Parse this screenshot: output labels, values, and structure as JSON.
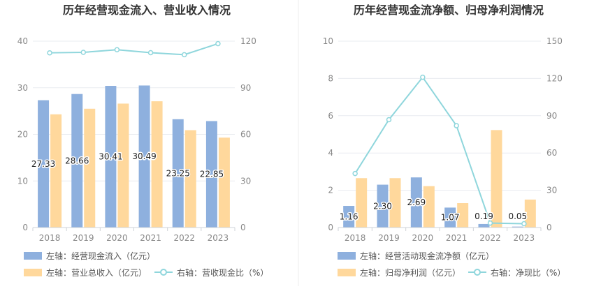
{
  "colors": {
    "blue": "#8eb0de",
    "orange": "#ffd89c",
    "line": "#8fd6dc",
    "grid": "#e9ecf0",
    "axis": "#cfd3d8",
    "divider": "#eeeeee"
  },
  "chart_data": [
    {
      "type": "bar",
      "title": "历年经营现金流入、营业收入情况",
      "categories": [
        "2018",
        "2019",
        "2020",
        "2021",
        "2022",
        "2023"
      ],
      "y_left_ticks": [
        "0",
        "10",
        "20",
        "30",
        "40"
      ],
      "y_right_ticks": [
        "0",
        "30",
        "60",
        "90",
        "120"
      ],
      "ylim_left": [
        0,
        40
      ],
      "ylim_right": [
        0,
        120
      ],
      "series": [
        {
          "name": "左轴：经营现金流入（亿元）",
          "axis": "left",
          "type": "bar",
          "values": [
            27.33,
            28.66,
            30.41,
            30.49,
            23.25,
            22.85
          ],
          "labels": [
            "27.33",
            "28.66",
            "30.41",
            "30.49",
            "23.25",
            "22.85"
          ]
        },
        {
          "name": "左轴：营业总收入（亿元）",
          "axis": "left",
          "type": "bar",
          "values": [
            24.3,
            25.5,
            26.6,
            27.1,
            20.9,
            19.3
          ]
        },
        {
          "name": "右轴：营收现金比（%）",
          "axis": "right",
          "type": "line",
          "values": [
            112.5,
            112.8,
            114.5,
            112.6,
            111.3,
            118.4
          ]
        }
      ]
    },
    {
      "type": "bar",
      "title": "历年经营现金流净额、归母净利润情况",
      "categories": [
        "2018",
        "2019",
        "2020",
        "2021",
        "2022",
        "2023"
      ],
      "y_left_ticks": [
        "0",
        "2",
        "4",
        "6",
        "8",
        "10"
      ],
      "y_right_ticks": [
        "0",
        "30",
        "60",
        "90",
        "120",
        "150"
      ],
      "ylim_left": [
        0,
        10
      ],
      "ylim_right": [
        0,
        150
      ],
      "series": [
        {
          "name": "左轴：经营活动现金流净额（亿元）",
          "axis": "left",
          "type": "bar",
          "values": [
            1.16,
            2.3,
            2.69,
            1.07,
            0.19,
            0.05
          ],
          "labels": [
            "1.16",
            "2.30",
            "2.69",
            "1.07",
            "0.19",
            "0.05"
          ]
        },
        {
          "name": "左轴：归母净利润（亿元）",
          "axis": "left",
          "type": "bar",
          "values": [
            2.65,
            2.65,
            2.22,
            1.31,
            5.23,
            1.5
          ]
        },
        {
          "name": "右轴：净现比（%）",
          "axis": "right",
          "type": "line",
          "values": [
            43.5,
            86.8,
            121.0,
            82.0,
            3.6,
            3.1
          ]
        }
      ]
    }
  ]
}
